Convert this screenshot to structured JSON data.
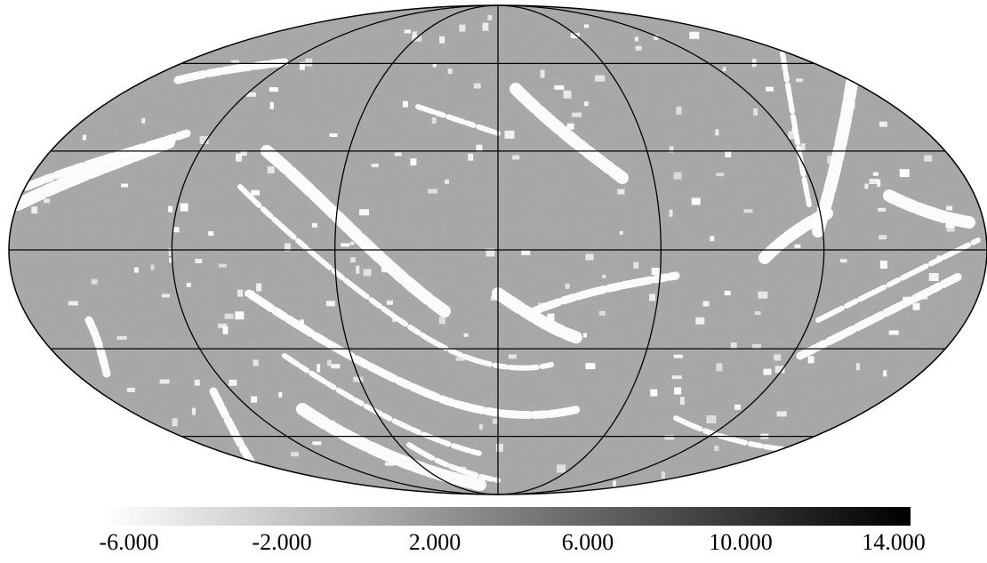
{
  "chart_data": {
    "type": "heatmap",
    "projection": "mollweide",
    "title": "",
    "colormap": {
      "name": "grayscale",
      "low_color": "#ffffff",
      "high_color": "#000000",
      "range": [
        -6.0,
        14.0
      ]
    },
    "colorbar": {
      "orientation": "horizontal",
      "tick_labels": [
        "-6.000",
        "-2.000",
        "2.000",
        "6.000",
        "10.000",
        "14.000"
      ],
      "tick_values": [
        -6.0,
        -2.0,
        2.0,
        6.0,
        10.0,
        14.0
      ]
    },
    "graticule": {
      "meridians_deg": [
        -120,
        -60,
        0,
        60,
        120
      ],
      "parallels_deg": [
        -60,
        -30,
        0,
        30,
        60
      ]
    },
    "map_background_value": 0.5,
    "map_background_color": "#a6a6a6",
    "saturated_color": "#ffffff",
    "outline_color": "#000000"
  }
}
